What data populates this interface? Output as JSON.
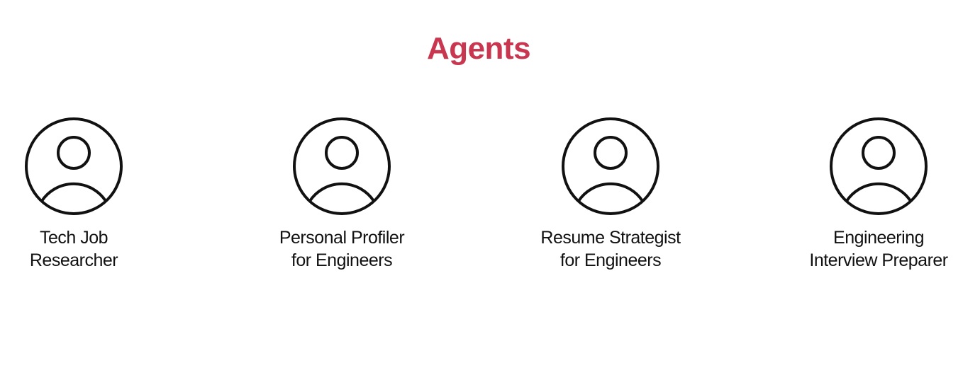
{
  "title": "Agents",
  "colors": {
    "title": "#c8364f",
    "icon_stroke": "#111111"
  },
  "agents": [
    {
      "icon": "user-avatar-icon",
      "lines": [
        "Tech Job",
        "Researcher"
      ]
    },
    {
      "icon": "user-avatar-icon",
      "lines": [
        "Personal Profiler",
        "for Engineers"
      ]
    },
    {
      "icon": "user-avatar-icon",
      "lines": [
        "Resume Strategist",
        "for Engineers"
      ]
    },
    {
      "icon": "user-avatar-icon",
      "lines": [
        "Engineering",
        "Interview Preparer"
      ]
    }
  ]
}
